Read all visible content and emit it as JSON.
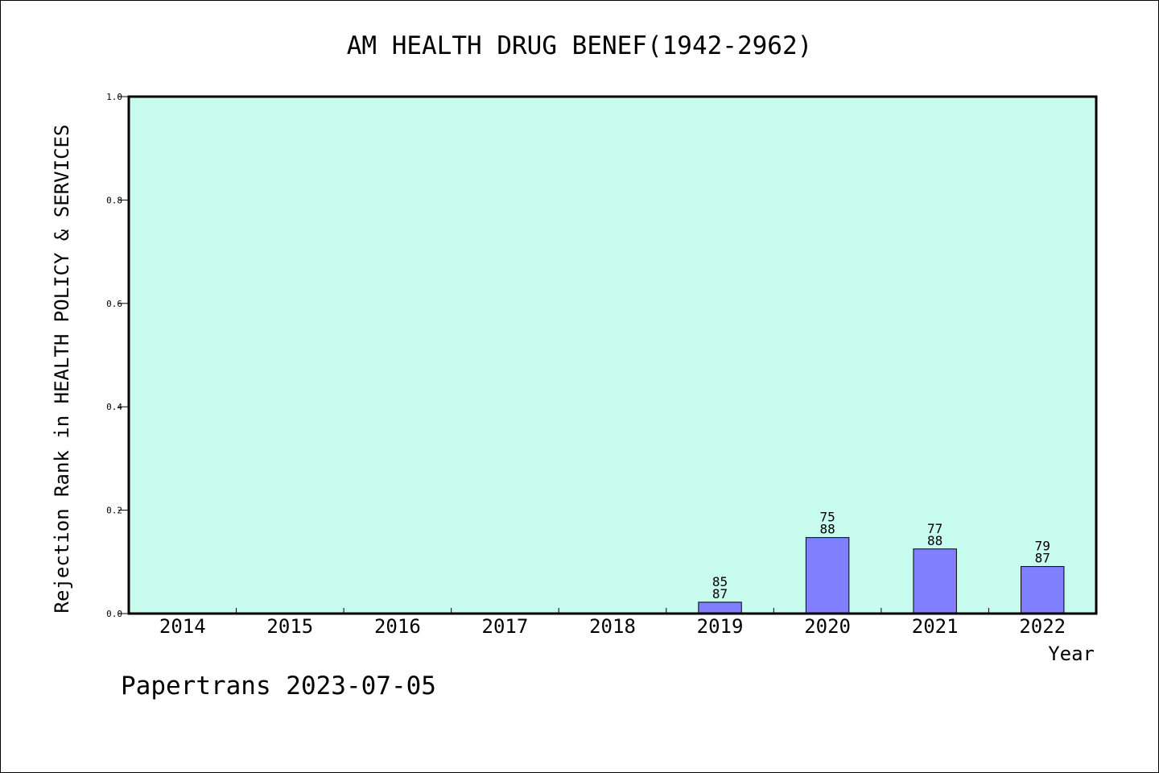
{
  "chart_data": {
    "type": "bar",
    "title": "AM HEALTH DRUG BENEF(1942-2962)",
    "xlabel": "Year",
    "ylabel": "Rejection Rank in HEALTH POLICY & SERVICES",
    "ylim": [
      0,
      1.0
    ],
    "yticks": [
      "0.0",
      "0.2",
      "0.4",
      "0.6",
      "0.8",
      "1.0"
    ],
    "categories": [
      "2014",
      "2015",
      "2016",
      "2017",
      "2018",
      "2019",
      "2020",
      "2021",
      "2022"
    ],
    "values": [
      0,
      0,
      0,
      0,
      0,
      0.022,
      0.147,
      0.125,
      0.091
    ],
    "label_top": [
      "",
      "",
      "",
      "",
      "",
      "85",
      "75",
      "77",
      "79"
    ],
    "label_bottom": [
      "",
      "",
      "",
      "",
      "",
      "87",
      "88",
      "88",
      "87"
    ],
    "grid": false,
    "colors": {
      "plot_background": "#c8fcee",
      "bar_fill": "#8080ff",
      "bar_stroke": "#000000"
    }
  },
  "footer": {
    "text": "Papertrans 2023-07-05"
  }
}
